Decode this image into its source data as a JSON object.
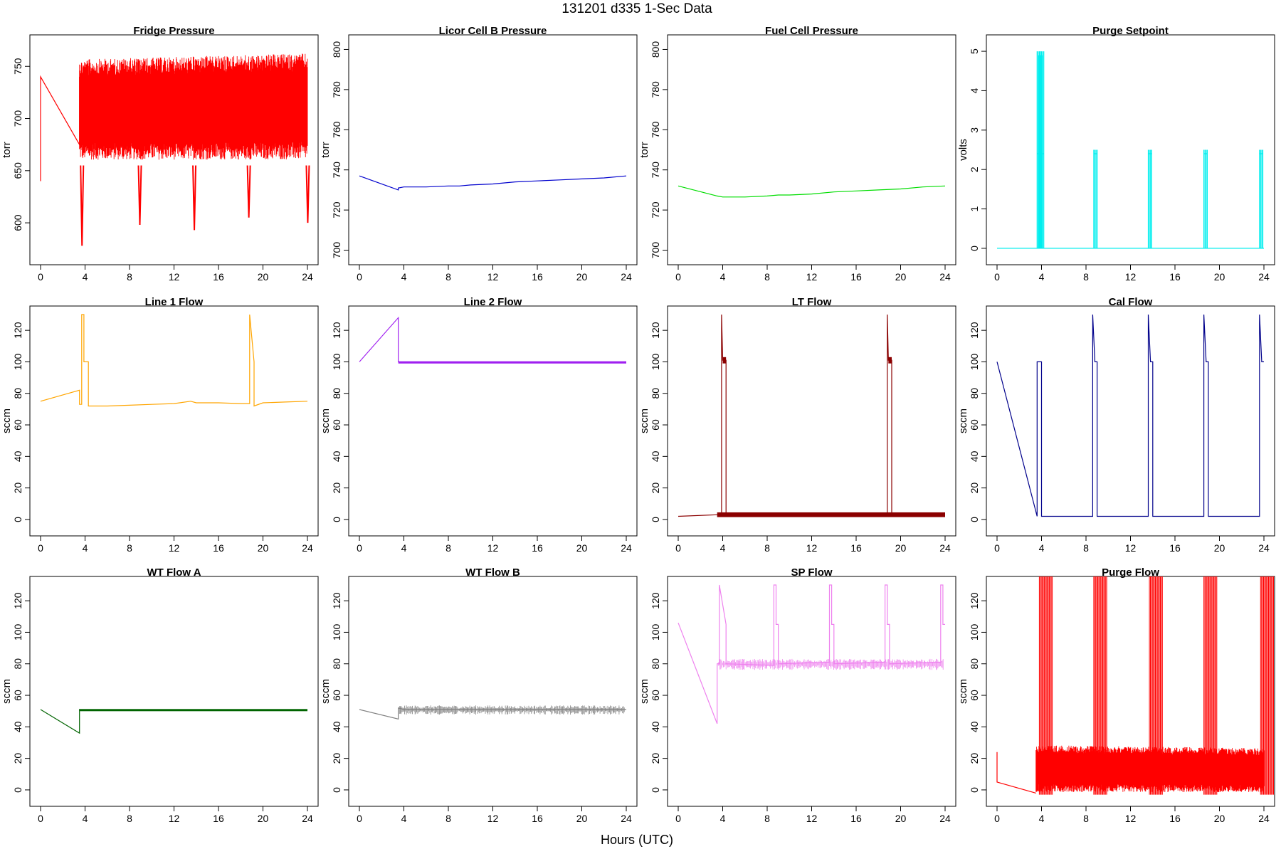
{
  "figure": {
    "title": "131201   d335   1-Sec Data",
    "xlabel": "Hours (UTC)"
  },
  "chart_data": [
    {
      "type": "line",
      "title": "Fridge Pressure",
      "ylabel": "torr",
      "color": "#ff0000",
      "style": "band",
      "xlim": [
        0,
        24
      ],
      "ylim": [
        568,
        772
      ],
      "xticks": [
        0,
        4,
        8,
        12,
        16,
        20,
        24
      ],
      "yticks": [
        600,
        650,
        700,
        750
      ],
      "series": [
        {
          "x": [
            0,
            0,
            3.5,
            3.5
          ],
          "y": [
            640,
            740,
            675,
            740
          ]
        }
      ],
      "band": {
        "low": [
          [
            3.5,
            655
          ],
          [
            24,
            655
          ]
        ],
        "high": [
          [
            3.5,
            762
          ],
          [
            24,
            768
          ]
        ],
        "dips": [
          [
            3.6,
            578
          ],
          [
            8.8,
            598
          ],
          [
            13.7,
            593
          ],
          [
            18.6,
            605
          ],
          [
            23.9,
            600
          ]
        ]
      }
    },
    {
      "type": "line",
      "title": "Licor Cell B Pressure",
      "ylabel": "torr",
      "color": "#0000cd",
      "style": "line",
      "xlim": [
        0,
        24
      ],
      "ylim": [
        697,
        803
      ],
      "xticks": [
        0,
        4,
        8,
        12,
        16,
        20,
        24
      ],
      "yticks": [
        700,
        720,
        740,
        760,
        780,
        800
      ],
      "series": [
        {
          "x": [
            0,
            3.5,
            3.5,
            4,
            6,
            8,
            9,
            10,
            12,
            14,
            16,
            18,
            20,
            22,
            24
          ],
          "y": [
            737,
            730,
            731,
            731.5,
            731.5,
            732,
            732,
            732.5,
            733,
            734,
            734.5,
            735,
            735.5,
            736,
            737
          ]
        }
      ]
    },
    {
      "type": "line",
      "title": "Fuel Cell Pressure",
      "ylabel": "torr",
      "color": "#00dd00",
      "style": "line",
      "xlim": [
        0,
        24
      ],
      "ylim": [
        697,
        803
      ],
      "xticks": [
        0,
        4,
        8,
        12,
        16,
        20,
        24
      ],
      "yticks": [
        700,
        720,
        740,
        760,
        780,
        800
      ],
      "series": [
        {
          "x": [
            0,
            3.5,
            4,
            5,
            6,
            8,
            9,
            10,
            12,
            14,
            16,
            18,
            20,
            22,
            24
          ],
          "y": [
            732,
            727,
            726.5,
            726.5,
            726.5,
            727,
            727.5,
            727.5,
            728,
            729,
            729.5,
            730,
            730.5,
            731.5,
            732
          ]
        }
      ]
    },
    {
      "type": "line",
      "title": "Purge Setpoint",
      "ylabel": "volts",
      "color": "#00eeee",
      "style": "spikes",
      "xlim": [
        0,
        24
      ],
      "ylim": [
        -0.2,
        5.2
      ],
      "xticks": [
        0,
        4,
        8,
        12,
        16,
        20,
        24
      ],
      "yticks": [
        0,
        1,
        2,
        3,
        4,
        5
      ],
      "series": [
        {
          "x": [
            0,
            24
          ],
          "y": [
            0,
            0
          ]
        }
      ],
      "spikes": [
        [
          3.6,
          5.0
        ],
        [
          3.75,
          4.9
        ],
        [
          3.9,
          5.0
        ],
        [
          8.7,
          2.5
        ],
        [
          13.6,
          2.5
        ],
        [
          18.6,
          2.5
        ],
        [
          23.6,
          2.5
        ]
      ],
      "plateau": 2.4
    },
    {
      "type": "line",
      "title": "Line 1 Flow",
      "ylabel": "sccm",
      "color": "#ffa500",
      "style": "line",
      "xlim": [
        0,
        24
      ],
      "ylim": [
        -5,
        130
      ],
      "xticks": [
        0,
        4,
        8,
        12,
        16,
        20,
        24
      ],
      "yticks": [
        0,
        20,
        40,
        60,
        80,
        100,
        120
      ],
      "series": [
        {
          "x": [
            0,
            3.5,
            3.5,
            3.7,
            3.7,
            3.9,
            3.9,
            4.3,
            4.3,
            6,
            8,
            10,
            12,
            13.5,
            14,
            16,
            18,
            18.8,
            18.8,
            19.2,
            19.2,
            20,
            22,
            24
          ],
          "y": [
            75,
            82,
            73,
            73,
            130,
            130,
            100,
            100,
            72,
            72,
            72.5,
            73,
            73.5,
            75,
            74,
            74,
            73.5,
            73.5,
            130,
            100,
            72,
            74,
            74.5,
            75
          ]
        }
      ]
    },
    {
      "type": "line",
      "title": "Line 2 Flow",
      "ylabel": "sccm",
      "color": "#a020f0",
      "style": "line",
      "xlim": [
        0,
        24
      ],
      "ylim": [
        -5,
        130
      ],
      "xticks": [
        0,
        4,
        8,
        12,
        16,
        20,
        24
      ],
      "yticks": [
        0,
        20,
        40,
        60,
        80,
        100,
        120
      ],
      "series": [
        {
          "x": [
            0,
            3.5,
            3.5,
            24
          ],
          "y": [
            100,
            128,
            100,
            100
          ]
        }
      ]
    },
    {
      "type": "line",
      "title": "LT Flow",
      "ylabel": "sccm",
      "color": "#8b0000",
      "style": "line",
      "xlim": [
        0,
        24
      ],
      "ylim": [
        -5,
        130
      ],
      "xticks": [
        0,
        4,
        8,
        12,
        16,
        20,
        24
      ],
      "yticks": [
        0,
        20,
        40,
        60,
        80,
        100,
        120
      ],
      "series": [
        {
          "x": [
            0,
            3.5,
            3.9,
            3.9,
            4.0,
            4.0,
            4.3,
            4.3,
            18.8,
            18.8,
            18.9,
            18.9,
            19.2,
            19.2,
            24
          ],
          "y": [
            2,
            3,
            3,
            130,
            101,
            101,
            101,
            3,
            3,
            130,
            101,
            101,
            101,
            3,
            3
          ]
        }
      ]
    },
    {
      "type": "line",
      "title": "Cal Flow",
      "ylabel": "sccm",
      "color": "#00008b",
      "style": "line",
      "xlim": [
        0,
        24
      ],
      "ylim": [
        -5,
        130
      ],
      "xticks": [
        0,
        4,
        8,
        12,
        16,
        20,
        24
      ],
      "yticks": [
        0,
        20,
        40,
        60,
        80,
        100,
        120
      ],
      "series": [
        {
          "x": [
            0,
            3.6,
            3.6,
            3.8,
            4.0,
            4.0,
            8.6,
            8.6,
            8.8,
            9.0,
            9.0,
            13.6,
            13.6,
            13.8,
            14.0,
            14.0,
            18.6,
            18.6,
            18.8,
            19.0,
            19.0,
            23.6,
            23.6,
            23.8,
            24
          ],
          "y": [
            100,
            2,
            100,
            100,
            100,
            2,
            2,
            130,
            100,
            100,
            2,
            2,
            130,
            100,
            100,
            2,
            2,
            130,
            100,
            100,
            2,
            2,
            130,
            100,
            100
          ]
        }
      ]
    },
    {
      "type": "line",
      "title": "WT Flow A",
      "ylabel": "sccm",
      "color": "#006400",
      "style": "line",
      "xlim": [
        0,
        24
      ],
      "ylim": [
        -5,
        130
      ],
      "xticks": [
        0,
        4,
        8,
        12,
        16,
        20,
        24
      ],
      "yticks": [
        0,
        20,
        40,
        60,
        80,
        100,
        120
      ],
      "series": [
        {
          "x": [
            0,
            3.5,
            3.5,
            4,
            8,
            12,
            16,
            20,
            24
          ],
          "y": [
            51,
            36,
            51,
            50.5,
            50.5,
            50.5,
            50.5,
            50.5,
            50.5
          ]
        }
      ]
    },
    {
      "type": "line",
      "title": "WT Flow B",
      "ylabel": "sccm",
      "color": "#808080",
      "style": "line",
      "xlim": [
        0,
        24
      ],
      "ylim": [
        -5,
        130
      ],
      "xticks": [
        0,
        4,
        8,
        12,
        16,
        20,
        24
      ],
      "yticks": [
        0,
        20,
        40,
        60,
        80,
        100,
        120
      ],
      "series": [
        {
          "x": [
            0,
            3.5,
            3.5,
            4,
            8,
            12,
            16,
            20,
            24
          ],
          "y": [
            51,
            45,
            52,
            51,
            51,
            51,
            51,
            51,
            51
          ]
        }
      ]
    },
    {
      "type": "line",
      "title": "SP Flow",
      "ylabel": "sccm",
      "color": "#ee82ee",
      "style": "line",
      "xlim": [
        0,
        24
      ],
      "ylim": [
        -5,
        130
      ],
      "xticks": [
        0,
        4,
        8,
        12,
        16,
        20,
        24
      ],
      "yticks": [
        0,
        20,
        40,
        60,
        80,
        100,
        120
      ],
      "series": [
        {
          "x": [
            0,
            3.5,
            3.5,
            3.7,
            3.7,
            4.3,
            4.3,
            8.6,
            8.6,
            8.8,
            8.8,
            9.0,
            9.0,
            13.6,
            13.6,
            13.8,
            13.8,
            14.0,
            14.0,
            18.6,
            18.6,
            18.8,
            18.8,
            19.0,
            19.0,
            23.6,
            23.6,
            23.8,
            23.8,
            24
          ],
          "y": [
            106,
            42,
            80,
            80,
            130,
            105,
            80,
            79,
            130,
            130,
            105,
            105,
            80,
            81,
            130,
            130,
            105,
            105,
            80,
            81,
            130,
            130,
            105,
            105,
            80,
            81,
            130,
            130,
            105,
            105
          ]
        }
      ]
    },
    {
      "type": "line",
      "title": "Purge Flow",
      "ylabel": "sccm",
      "color": "#ff0000",
      "style": "band",
      "xlim": [
        0,
        24
      ],
      "ylim": [
        -5,
        130
      ],
      "xticks": [
        0,
        4,
        8,
        12,
        16,
        20,
        24
      ],
      "yticks": [
        0,
        20,
        40,
        60,
        80,
        100,
        120
      ],
      "series": [
        {
          "x": [
            0,
            0,
            3.5
          ],
          "y": [
            24,
            5,
            -2
          ]
        }
      ],
      "band": {
        "low": [
          [
            3.5,
            -3
          ],
          [
            24,
            -3
          ]
        ],
        "high": [
          [
            3.5,
            30
          ],
          [
            24,
            28
          ]
        ],
        "bursts": [
          3.8,
          8.7,
          13.7,
          18.6,
          23.7
        ]
      }
    }
  ]
}
